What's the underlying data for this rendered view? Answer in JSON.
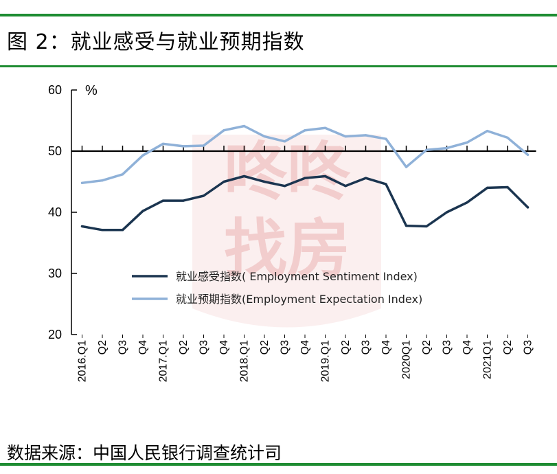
{
  "title": "图 2：就业感受与就业预期指数",
  "source": "数据来源：中国人民银行调查统计司",
  "watermark": [
    "咚咚",
    "找房"
  ],
  "colors": {
    "rule": "#1e8c32",
    "sentiment": "#1b3550",
    "expectation": "#8fb1d8",
    "watermark": "#e8a5a5"
  },
  "chart_data": {
    "type": "line",
    "unit": "%",
    "ylim": [
      20,
      60
    ],
    "yticks": [
      20,
      30,
      40,
      50,
      60
    ],
    "reference_line": 50,
    "legend_position": "center",
    "categories": [
      "2016.Q1",
      "Q2",
      "Q3",
      "Q4",
      "2017.Q1",
      "Q2",
      "Q3",
      "Q4",
      "2018.Q1",
      "Q2",
      "Q3",
      "Q4",
      "2019.Q1",
      "Q2",
      "Q3",
      "Q4",
      "2020Q1",
      "Q2",
      "Q3",
      "Q4",
      "2021Q1",
      "Q2",
      "Q3"
    ],
    "series": [
      {
        "name": "就业感受指数( Employment Sentiment Index)",
        "values": [
          37.7,
          37.1,
          37.1,
          40.2,
          41.9,
          41.9,
          42.7,
          45.0,
          45.9,
          45.0,
          44.3,
          45.6,
          45.9,
          44.3,
          45.6,
          44.6,
          37.8,
          37.7,
          40.0,
          41.6,
          44.0,
          44.1,
          40.8
        ]
      },
      {
        "name": "就业预期指数(Employment Expectation Index)",
        "values": [
          44.8,
          45.2,
          46.2,
          49.3,
          51.2,
          50.8,
          50.9,
          53.4,
          54.1,
          52.4,
          51.6,
          53.4,
          53.8,
          52.4,
          52.6,
          52.0,
          47.4,
          50.2,
          50.5,
          51.4,
          53.3,
          52.2,
          49.4
        ]
      }
    ]
  }
}
